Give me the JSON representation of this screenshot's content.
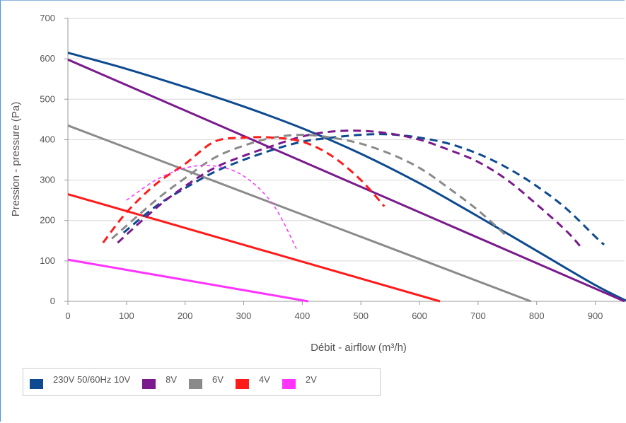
{
  "chart_data": {
    "type": "line",
    "title": "",
    "xlabel": "Débit - airflow (m³/h)",
    "ylabel": "Pression - pressure (Pa)",
    "xlim": [
      0,
      950
    ],
    "ylim": [
      0,
      700
    ],
    "x_ticks": [
      "0",
      "100",
      "200",
      "300",
      "400",
      "500",
      "600",
      "700",
      "800",
      "900"
    ],
    "y_ticks": [
      "0",
      "100",
      "200",
      "300",
      "400",
      "500",
      "600",
      "700"
    ],
    "grid": "horizontal",
    "legend_position": "bottom-left",
    "series": [
      {
        "name": "230V 50/60Hz 10V",
        "color": "#0d4a8f",
        "style": "solid",
        "x": [
          0,
          100,
          200,
          300,
          400,
          500,
          600,
          700,
          800,
          900,
          955
        ],
        "y": [
          615,
          575,
          530,
          482,
          428,
          365,
          292,
          210,
          125,
          40,
          0
        ]
      },
      {
        "name": "8V",
        "color": "#7a1a8c",
        "style": "solid",
        "x": [
          0,
          950
        ],
        "y": [
          598,
          0
        ]
      },
      {
        "name": "6V",
        "color": "#8a8a8a",
        "style": "solid",
        "x": [
          0,
          790
        ],
        "y": [
          435,
          0
        ]
      },
      {
        "name": "4V",
        "color": "#ff1a1a",
        "style": "solid",
        "x": [
          0,
          635
        ],
        "y": [
          265,
          0
        ]
      },
      {
        "name": "2V",
        "color": "#ff33ff",
        "style": "solid",
        "x": [
          0,
          410
        ],
        "y": [
          103,
          0
        ]
      },
      {
        "name": "",
        "color": "#0d4a8f",
        "style": "dashed",
        "x": [
          95,
          150,
          200,
          250,
          300,
          350,
          400,
          450,
          500,
          550,
          600,
          650,
          700,
          750,
          800,
          850,
          900,
          915
        ],
        "y": [
          170,
          235,
          280,
          320,
          350,
          375,
          395,
          405,
          412,
          413,
          405,
          390,
          365,
          330,
          285,
          230,
          160,
          140
        ]
      },
      {
        "name": "",
        "color": "#7a1a8c",
        "style": "dashed",
        "x": [
          85,
          150,
          200,
          250,
          300,
          350,
          400,
          450,
          500,
          550,
          600,
          650,
          700,
          750,
          800,
          850,
          875
        ],
        "y": [
          145,
          230,
          285,
          330,
          360,
          385,
          408,
          420,
          422,
          415,
          400,
          375,
          345,
          300,
          240,
          175,
          135
        ]
      },
      {
        "name": "",
        "color": "#8a8a8a",
        "style": "dashed",
        "x": [
          75,
          150,
          200,
          250,
          300,
          350,
          400,
          450,
          500,
          550,
          600,
          650,
          700,
          750
        ],
        "y": [
          155,
          250,
          305,
          355,
          385,
          405,
          412,
          405,
          390,
          365,
          330,
          280,
          225,
          160
        ]
      },
      {
        "name": "",
        "color": "#ff1a1a",
        "style": "dashed",
        "x": [
          60,
          100,
          150,
          200,
          250,
          300,
          350,
          400,
          450,
          500,
          540
        ],
        "y": [
          145,
          220,
          290,
          340,
          395,
          405,
          405,
          395,
          360,
          300,
          235
        ]
      },
      {
        "name": "",
        "color": "#ff33ff",
        "style": "dashed",
        "x": [
          100,
          150,
          200,
          250,
          300,
          350,
          390
        ],
        "y": [
          250,
          300,
          330,
          335,
          310,
          240,
          130
        ]
      }
    ]
  }
}
